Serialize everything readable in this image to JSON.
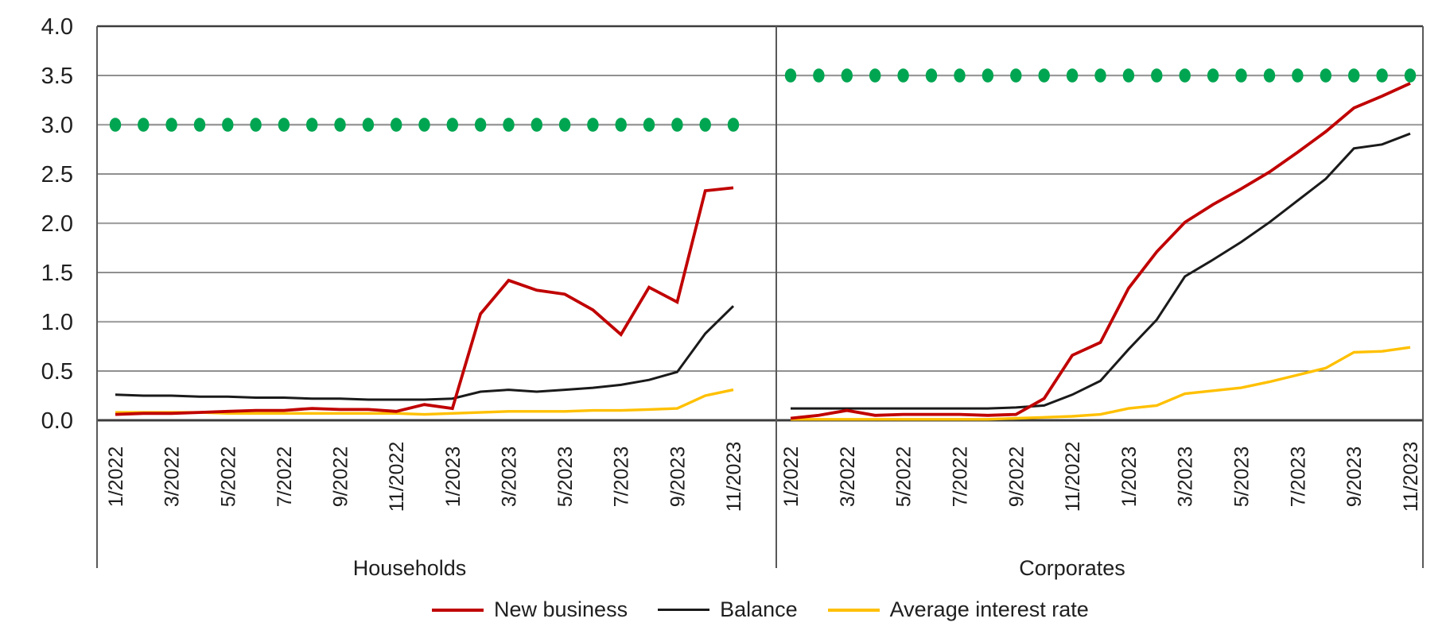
{
  "chart_data": {
    "type": "line",
    "title": "",
    "ylabel": "",
    "xlabel": "",
    "ylim": [
      0,
      4
    ],
    "grid": true,
    "legend_position": "bottom",
    "y_ticks": [
      4.0,
      3.5,
      3.0,
      2.5,
      2.0,
      1.5,
      1.0,
      0.5,
      0.0
    ],
    "x": [
      "1/2022",
      "2/2022",
      "3/2022",
      "4/2022",
      "5/2022",
      "6/2022",
      "7/2022",
      "8/2022",
      "9/2022",
      "10/2022",
      "11/2022",
      "12/2022",
      "1/2023",
      "2/2023",
      "3/2023",
      "4/2023",
      "5/2023",
      "6/2023",
      "7/2023",
      "8/2023",
      "9/2023",
      "10/2023",
      "11/2023"
    ],
    "x_tick_labels_shown": [
      "1/2022",
      "3/2022",
      "5/2022",
      "7/2022",
      "9/2022",
      "11/2022",
      "1/2023",
      "3/2023",
      "5/2023",
      "7/2023",
      "9/2023",
      "11/2023"
    ],
    "panels": [
      {
        "label": "Households",
        "series": [
          {
            "name": "Balance",
            "color": "#1a1a1a",
            "style": "line",
            "values": [
              0.26,
              0.25,
              0.25,
              0.24,
              0.24,
              0.23,
              0.23,
              0.22,
              0.22,
              0.21,
              0.21,
              0.21,
              0.22,
              0.29,
              0.31,
              0.29,
              0.31,
              0.33,
              0.36,
              0.41,
              0.49,
              0.88,
              1.16
            ]
          },
          {
            "name": "Average interest rate",
            "color": "#ffc000",
            "style": "line",
            "values": [
              0.08,
              0.08,
              0.08,
              0.08,
              0.07,
              0.07,
              0.07,
              0.07,
              0.07,
              0.07,
              0.07,
              0.06,
              0.07,
              0.08,
              0.09,
              0.09,
              0.09,
              0.1,
              0.1,
              0.11,
              0.12,
              0.25,
              0.31
            ]
          },
          {
            "name": "New business",
            "color": "#c00000",
            "style": "line",
            "values": [
              0.06,
              0.07,
              0.07,
              0.08,
              0.09,
              0.1,
              0.1,
              0.12,
              0.11,
              0.11,
              0.09,
              0.16,
              0.12,
              1.08,
              1.42,
              1.32,
              1.28,
              1.12,
              0.87,
              1.35,
              1.2,
              2.33,
              2.36
            ]
          },
          {
            "name": "Reference level",
            "color": "#00a551",
            "style": "dot-markers",
            "values": [
              3.0,
              3.0,
              3.0,
              3.0,
              3.0,
              3.0,
              3.0,
              3.0,
              3.0,
              3.0,
              3.0,
              3.0,
              3.0,
              3.0,
              3.0,
              3.0,
              3.0,
              3.0,
              3.0,
              3.0,
              3.0,
              3.0,
              3.0
            ]
          }
        ]
      },
      {
        "label": "Corporates",
        "series": [
          {
            "name": "Balance",
            "color": "#1a1a1a",
            "style": "line",
            "values": [
              0.12,
              0.12,
              0.12,
              0.12,
              0.12,
              0.12,
              0.12,
              0.12,
              0.13,
              0.15,
              0.26,
              0.4,
              0.72,
              1.02,
              1.46,
              1.63,
              1.81,
              2.01,
              2.23,
              2.45,
              2.76,
              2.8,
              2.91
            ]
          },
          {
            "name": "Average interest rate",
            "color": "#ffc000",
            "style": "line",
            "values": [
              0.01,
              0.01,
              0.01,
              0.01,
              0.01,
              0.01,
              0.01,
              0.01,
              0.02,
              0.03,
              0.04,
              0.06,
              0.12,
              0.15,
              0.27,
              0.3,
              0.33,
              0.39,
              0.46,
              0.53,
              0.69,
              0.7,
              0.74
            ]
          },
          {
            "name": "New business",
            "color": "#c00000",
            "style": "line",
            "values": [
              0.02,
              0.05,
              0.1,
              0.05,
              0.06,
              0.06,
              0.06,
              0.05,
              0.06,
              0.22,
              0.66,
              0.79,
              1.34,
              1.71,
              2.01,
              2.19,
              2.35,
              2.52,
              2.72,
              2.93,
              3.17,
              3.29,
              3.42
            ]
          },
          {
            "name": "Reference level",
            "color": "#00a551",
            "style": "dot-markers",
            "values": [
              3.5,
              3.5,
              3.5,
              3.5,
              3.5,
              3.5,
              3.5,
              3.5,
              3.5,
              3.5,
              3.5,
              3.5,
              3.5,
              3.5,
              3.5,
              3.5,
              3.5,
              3.5,
              3.5,
              3.5,
              3.5,
              3.5,
              3.5
            ]
          }
        ]
      }
    ],
    "legend_items": [
      {
        "label": "New business",
        "color": "#c00000"
      },
      {
        "label": "Balance",
        "color": "#1a1a1a"
      },
      {
        "label": "Average interest rate",
        "color": "#ffc000"
      }
    ]
  }
}
